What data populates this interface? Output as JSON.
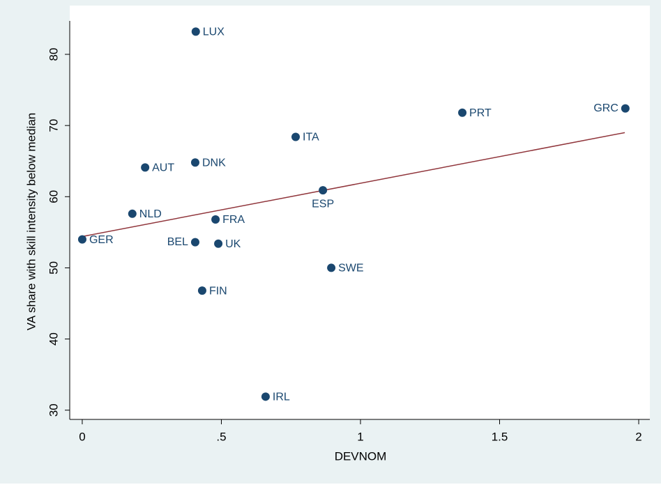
{
  "chart_data": {
    "type": "scatter",
    "x_label": "DEVNOM",
    "y_label": "VA share with skill intensity below median",
    "labels": [
      "LUX",
      "PRT",
      "GRC",
      "ITA",
      "AUT",
      "DNK",
      "ESP",
      "NLD",
      "FRA",
      "GER",
      "BEL",
      "UK",
      "SWE",
      "FIN",
      "IRL"
    ],
    "x": [
      0.408,
      1.366,
      1.952,
      0.767,
      0.226,
      0.406,
      0.865,
      0.18,
      0.479,
      0.0,
      0.406,
      0.489,
      0.895,
      0.431,
      0.659
    ],
    "values": [
      83.2,
      71.8,
      72.4,
      68.4,
      64.1,
      64.8,
      60.9,
      57.6,
      56.8,
      54.0,
      53.6,
      53.4,
      50.0,
      46.8,
      31.9
    ],
    "label_positions": [
      "right",
      "right",
      "left",
      "right",
      "right",
      "right",
      "below",
      "right",
      "right",
      "right",
      "left",
      "right",
      "right",
      "right",
      "right"
    ],
    "color": "#1a476f",
    "fit_line": {
      "x": [
        0.0,
        1.95
      ],
      "values": [
        54.4,
        69.0
      ],
      "color": "#90353b"
    },
    "xlim": [
      -0.045,
      2.04
    ],
    "ylim": [
      28.7,
      84.7
    ],
    "xticks": [
      0,
      {
        "value": 0.5,
        "label": ".5"
      },
      1,
      1.5,
      2
    ],
    "yticks": [
      30,
      40,
      50,
      60,
      70,
      80
    ],
    "grid": false
  }
}
